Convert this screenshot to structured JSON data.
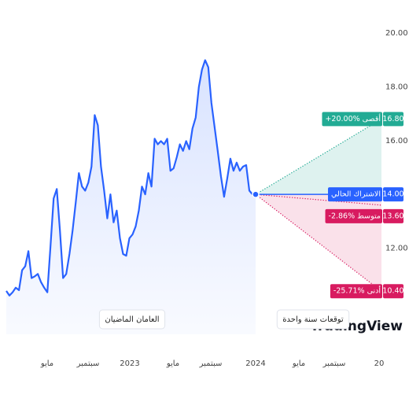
{
  "chart_data": {
    "type": "line",
    "values": [
      10.41,
      10.24,
      10.36,
      10.53,
      10.44,
      11.18,
      11.33,
      11.89,
      10.89,
      10.95,
      11.04,
      10.74,
      10.53,
      10.36,
      12.07,
      13.85,
      14.2,
      12.66,
      10.89,
      11.04,
      11.78,
      12.66,
      13.7,
      14.79,
      14.29,
      14.14,
      14.44,
      15.03,
      16.95,
      16.57,
      15.03,
      14.14,
      13.11,
      14.0,
      12.96,
      13.4,
      12.37,
      11.78,
      11.72,
      12.37,
      12.51,
      12.81,
      13.4,
      14.29,
      14.0,
      14.79,
      14.29,
      16.07,
      15.86,
      15.98,
      15.86,
      16.07,
      14.88,
      14.97,
      15.38,
      15.86,
      15.62,
      15.98,
      15.68,
      16.45,
      16.86,
      17.99,
      18.64,
      18.99,
      18.73,
      17.4,
      16.51,
      15.62,
      14.67,
      13.91,
      14.59,
      15.33,
      14.88,
      15.18,
      14.88,
      15.03,
      15.09,
      14.14,
      14.0,
      14.0
    ],
    "color": "#2962ff",
    "ylim": [
      9.5,
      20
    ],
    "yticks": [
      {
        "value": 20,
        "label": "20.00"
      },
      {
        "value": 18,
        "label": "18.00"
      },
      {
        "value": 16,
        "label": "16.00"
      },
      {
        "value": 12,
        "label": "12.00"
      }
    ],
    "xticks": [
      "مايو",
      "سبتمبر",
      "2023",
      "مايو",
      "سبتمبر",
      "2024",
      "مايو",
      "سبتمبر",
      "20"
    ],
    "past_label": "العامان الماضيان",
    "forecast_label": "توقعات سنة واحدة",
    "watermark": "TradingView",
    "forecast": {
      "current": {
        "label": "الاشتراك الحالي",
        "value": 14,
        "value_label": "14.00",
        "color": "#2962ff"
      },
      "high": {
        "label": "+20.00% أقصى",
        "value": 16.8,
        "value_label": "16.80",
        "color": "#22ab94"
      },
      "average": {
        "label": "-2.86% متوسط",
        "value": 13.6,
        "value_label": "13.60",
        "color": "#d81b60"
      },
      "low": {
        "label": "-25.71% أدنى",
        "value": 10.4,
        "value_label": "10.40",
        "color": "#d81b60"
      }
    }
  }
}
